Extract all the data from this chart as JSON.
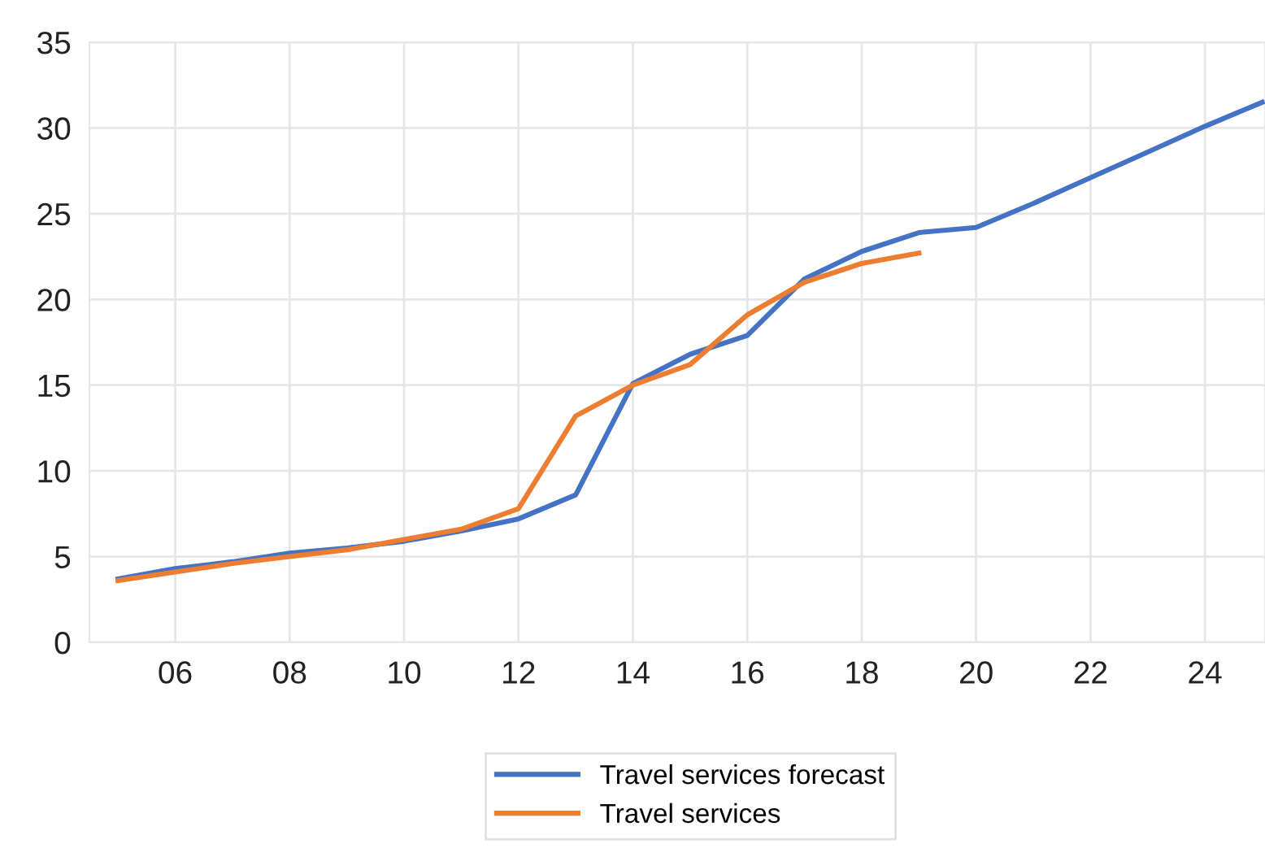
{
  "chart_data": {
    "type": "line",
    "x": [
      5,
      6,
      7,
      8,
      9,
      10,
      11,
      12,
      13,
      14,
      15,
      16,
      17,
      18,
      19,
      20,
      21,
      22,
      23,
      24,
      25
    ],
    "series": [
      {
        "name": "Travel services forecast",
        "color": "#4472c4",
        "values": [
          3.7,
          4.3,
          4.7,
          5.2,
          5.5,
          5.9,
          6.5,
          7.2,
          8.6,
          15.1,
          16.8,
          17.9,
          21.2,
          22.8,
          23.9,
          24.2,
          25.6,
          27.1,
          28.6,
          30.1,
          31.5
        ]
      },
      {
        "name": "Travel services",
        "color": "#ed7d31",
        "values": [
          3.6,
          4.1,
          4.6,
          5.0,
          5.4,
          6.0,
          6.6,
          7.8,
          13.2,
          15.0,
          16.2,
          19.1,
          21.0,
          22.1,
          22.7,
          null,
          null,
          null,
          null,
          null,
          null
        ]
      }
    ],
    "xlim": [
      4.5,
      25.05
    ],
    "xticks": [
      {
        "value": 6,
        "label": "06"
      },
      {
        "value": 8,
        "label": "08"
      },
      10,
      12,
      14,
      16,
      18,
      20,
      22,
      24
    ],
    "ylim": [
      0,
      35
    ],
    "yticks": [
      0,
      5,
      10,
      15,
      20,
      25,
      30,
      35
    ],
    "grid": true,
    "legend": "bottom",
    "marker": "none",
    "line_style": "solid"
  }
}
